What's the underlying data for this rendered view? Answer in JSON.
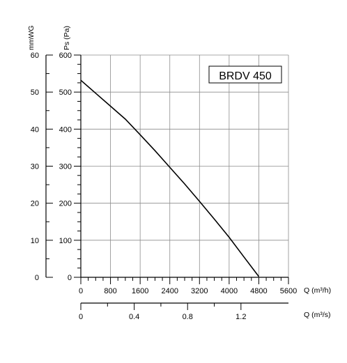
{
  "chart_data": {
    "type": "line",
    "model_label": "BRDV 450",
    "y_axis_primary": {
      "label": "Ps (Pa)",
      "range": [
        0,
        600
      ],
      "ticks": [
        0,
        100,
        200,
        300,
        400,
        500,
        600
      ],
      "tick_labels": [
        "0",
        "100",
        "200",
        "300",
        "400",
        "500",
        "600"
      ]
    },
    "y_axis_secondary": {
      "label": "mmWG",
      "range": [
        0,
        60
      ],
      "ticks": [
        0,
        10,
        20,
        30,
        40,
        50,
        60
      ],
      "tick_labels": [
        "0",
        "10",
        "20",
        "30",
        "40",
        "50",
        "60"
      ]
    },
    "x_axis_primary": {
      "label": "Q (m³/h)",
      "range": [
        0,
        5600
      ],
      "ticks": [
        0,
        800,
        1600,
        2400,
        3200,
        4000,
        4800,
        5600
      ],
      "tick_labels": [
        "0",
        "800",
        "1600",
        "2400",
        "3200",
        "4000",
        "4800",
        "5600"
      ]
    },
    "x_axis_secondary": {
      "label": "Q (m³/s)",
      "range": [
        0,
        1.556
      ],
      "ticks": [
        0,
        0.4,
        0.8,
        1.2
      ],
      "tick_labels": [
        "0",
        "0.4",
        "0.8",
        "1.2"
      ]
    },
    "grid": true,
    "series": [
      {
        "x": [
          0,
          400,
          800,
          1200,
          1600,
          2000,
          2400,
          2800,
          3200,
          3600,
          4000,
          4400,
          4800
        ],
        "y": [
          532,
          497,
          462,
          427,
          385,
          342,
          297,
          252,
          205,
          157,
          108,
          55,
          2
        ]
      }
    ]
  }
}
